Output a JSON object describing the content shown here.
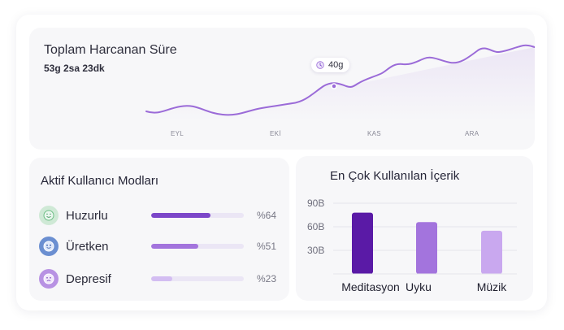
{
  "time_card": {
    "title": "Toplam Harcanan Süre",
    "value": "53g 2sa 23dk",
    "tooltip": "40g",
    "tooltip_icon": "clock-icon",
    "months": [
      "EYL",
      "EKİ",
      "KAS",
      "ARA"
    ],
    "line_color": "#9b6bd8"
  },
  "modes_card": {
    "title": "Aktif Kullanıcı Modları",
    "items": [
      {
        "label": "Huzurlu",
        "percent_text": "%64",
        "value": 0.64,
        "icon": "calm-face-icon",
        "icon_bg": "#cfe9d6",
        "bar_color": "#7c47c9"
      },
      {
        "label": "Üretken",
        "percent_text": "%51",
        "value": 0.51,
        "icon": "focused-face-icon",
        "icon_bg": "#6b8fd1",
        "bar_color": "#a374dd"
      },
      {
        "label": "Depresif",
        "percent_text": "%23",
        "value": 0.23,
        "icon": "sad-face-icon",
        "icon_bg": "#b892e3",
        "bar_color": "#d3bdf2"
      }
    ]
  },
  "content_card": {
    "title": "En Çok Kullanılan İçerik"
  },
  "chart_data": {
    "type": "bar",
    "categories": [
      "Meditasyon",
      "Uyku",
      "Müzik"
    ],
    "values": [
      78,
      66,
      55
    ],
    "yticks": [
      "90B",
      "60B",
      "30B"
    ],
    "ytick_values": [
      90,
      60,
      30
    ],
    "ylim": [
      0,
      100
    ],
    "colors": [
      "#5a1aa6",
      "#a374dd",
      "#c9a8ef"
    ],
    "grid": true
  }
}
